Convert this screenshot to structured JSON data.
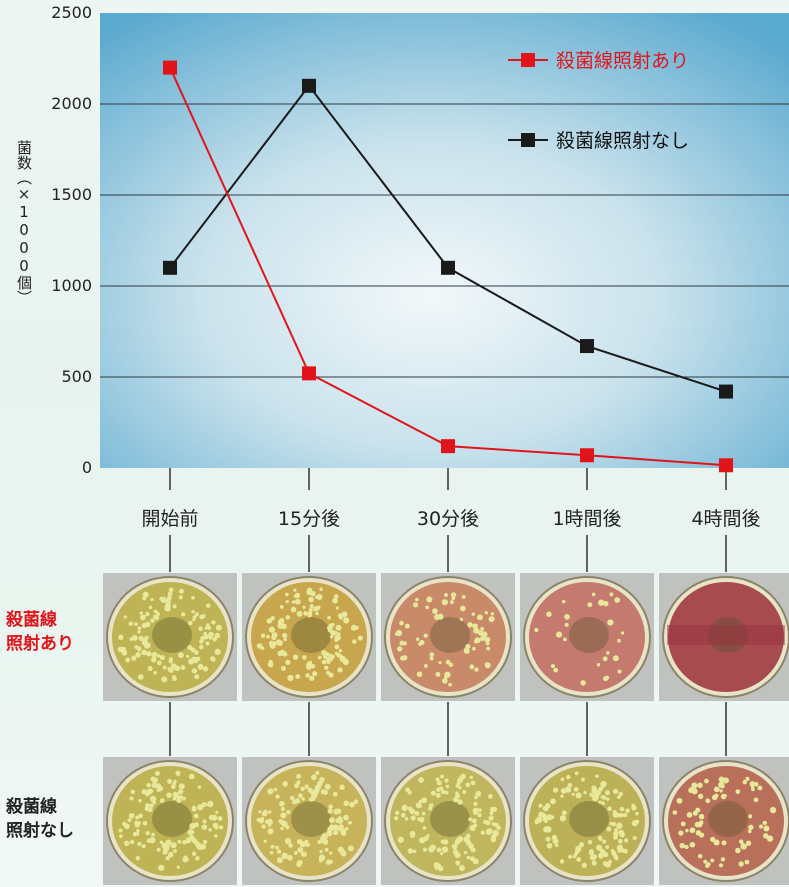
{
  "chart_data": {
    "type": "line",
    "categories": [
      "開始前",
      "15分後",
      "30分後",
      "1時間後",
      "4時間後"
    ],
    "series": [
      {
        "name": "殺菌線照射あり",
        "color": "#e2141b",
        "values": [
          2200,
          520,
          120,
          70,
          15
        ]
      },
      {
        "name": "殺菌線照射なし",
        "color": "#1a1a1a",
        "values": [
          1100,
          2100,
          1100,
          670,
          420
        ]
      }
    ],
    "ylabel": "菌数（×1000個）",
    "yticks": [
      0,
      500,
      1000,
      1500,
      2000,
      2500
    ],
    "ylim": [
      0,
      2500
    ],
    "legend_position": "top-right",
    "grid": true
  },
  "photo_rows": {
    "irradiated_label": [
      "殺菌線",
      "照射あり"
    ],
    "not_irradiated_label": [
      "殺菌線",
      "照射なし"
    ],
    "irradiated_colonies": [
      "dense ring",
      "dense ring",
      "medium ring",
      "sparse",
      "none"
    ],
    "not_irradiated_colonies": [
      "dense ring",
      "dense ring",
      "dense ring",
      "dense ring",
      "medium ring"
    ]
  },
  "colors": {
    "red_series": "#e2141b",
    "black_series": "#1a1a1a",
    "plot_bg_top": "#6fb4d4",
    "plot_bg_center": "#e6f2f6"
  }
}
